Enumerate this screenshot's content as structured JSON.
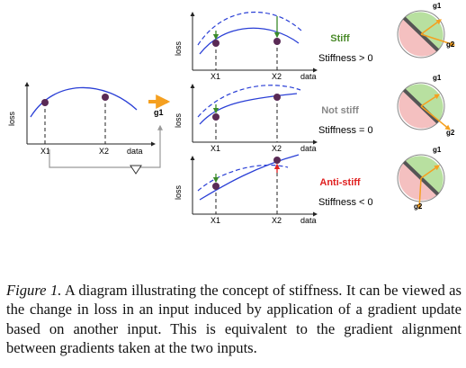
{
  "figure": {
    "input_panel": {
      "ylabel": "loss",
      "xlabel": "data",
      "ticks": [
        "X1",
        "X2"
      ],
      "arrow_label": "g1"
    },
    "panels": [
      {
        "ylabel": "loss",
        "xlabel": "data",
        "ticks": [
          "X1",
          "X2"
        ],
        "title": "Stiff",
        "relation": "Stiffness > 0",
        "title_color": "#4a8a2a",
        "circle_g1": "g1",
        "circle_g2": "g2"
      },
      {
        "ylabel": "loss",
        "xlabel": "data",
        "ticks": [
          "X1",
          "X2"
        ],
        "title": "Not stiff",
        "relation": "Stiffness = 0",
        "title_color": "#888888",
        "circle_g1": "g1",
        "circle_g2": "g2"
      },
      {
        "ylabel": "loss",
        "xlabel": "data",
        "ticks": [
          "X1",
          "X2"
        ],
        "title": "Anti-stiff",
        "relation": "Stiffness < 0",
        "title_color": "#e02020",
        "circle_g1": "g1",
        "circle_g2": "g2"
      }
    ],
    "colors": {
      "curve": "#2a3fd6",
      "point": "#5a2a55",
      "arrow_orange": "#f5a020",
      "arrow_green": "#3a8a2a",
      "arrow_red": "#e02020",
      "circle_green": "#b8e0a0",
      "circle_pink": "#f4c0c0",
      "divider": "#555555",
      "loop": "#999999"
    }
  },
  "caption": {
    "label": "Figure 1.",
    "text": " A diagram illustrating the concept of stiffness. It can be viewed as the change in loss in an input induced by application of a gradient update based on another input. This is equivalent to the gradient alignment between gradients taken at the two inputs."
  }
}
